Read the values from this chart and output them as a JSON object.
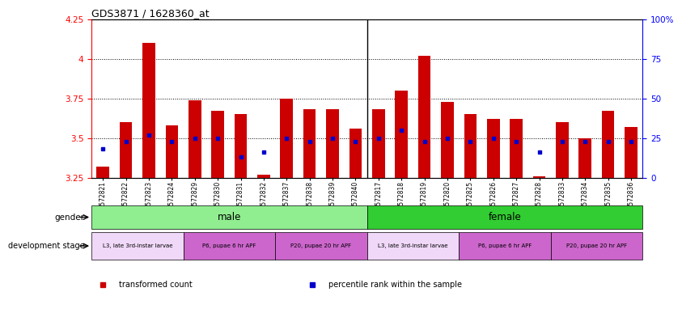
{
  "title": "GDS3871 / 1628360_at",
  "samples": [
    "GSM572821",
    "GSM572822",
    "GSM572823",
    "GSM572824",
    "GSM572829",
    "GSM572830",
    "GSM572831",
    "GSM572832",
    "GSM572837",
    "GSM572838",
    "GSM572839",
    "GSM572840",
    "GSM572817",
    "GSM572818",
    "GSM572819",
    "GSM572820",
    "GSM572825",
    "GSM572826",
    "GSM572827",
    "GSM572828",
    "GSM572833",
    "GSM572834",
    "GSM572835",
    "GSM572836"
  ],
  "bar_values": [
    3.32,
    3.6,
    4.1,
    3.58,
    3.74,
    3.67,
    3.65,
    3.27,
    3.75,
    3.68,
    3.68,
    3.56,
    3.68,
    3.8,
    4.02,
    3.73,
    3.65,
    3.62,
    3.62,
    3.26,
    3.6,
    3.5,
    3.67,
    3.57
  ],
  "blue_values": [
    3.43,
    3.48,
    3.52,
    3.48,
    3.5,
    3.5,
    3.38,
    3.41,
    3.5,
    3.48,
    3.5,
    3.48,
    3.5,
    3.55,
    3.48,
    3.5,
    3.48,
    3.5,
    3.48,
    3.41,
    3.48,
    3.48,
    3.48,
    3.48
  ],
  "bar_color": "#cc0000",
  "blue_color": "#0000cc",
  "ymin": 3.25,
  "ymax": 4.25,
  "yticks_left": [
    3.25,
    3.5,
    3.75,
    4.0,
    4.25
  ],
  "ytick_labels_left": [
    "3.25",
    "3.5",
    "3.75",
    "4",
    "4.25"
  ],
  "yticks_right_pct": [
    0,
    25,
    50,
    75,
    100
  ],
  "ytick_labels_right": [
    "0",
    "25",
    "50",
    "75",
    "100%"
  ],
  "grid_values": [
    3.5,
    3.75,
    4.0
  ],
  "gender_labels": [
    "male",
    "female"
  ],
  "gender_male_color": "#90ee90",
  "gender_female_color": "#32cd32",
  "dev_stage_labels": [
    "L3, late 3rd-instar larvae",
    "P6, pupae 6 hr APF",
    "P20, pupae 20 hr APF",
    "L3, late 3rd-instar larvae",
    "P6, pupae 6 hr APF",
    "P20, pupae 20 hr APF"
  ],
  "dev_stage_ranges": [
    [
      0,
      4
    ],
    [
      4,
      8
    ],
    [
      8,
      12
    ],
    [
      12,
      16
    ],
    [
      16,
      20
    ],
    [
      20,
      24
    ]
  ],
  "dev_stage_colors": [
    "#f0d8f8",
    "#cc66cc",
    "#cc66cc",
    "#f0d8f8",
    "#cc66cc",
    "#cc66cc"
  ],
  "legend_items": [
    {
      "label": "transformed count",
      "color": "#cc0000"
    },
    {
      "label": "percentile rank within the sample",
      "color": "#0000cc"
    }
  ],
  "plot_bg_color": "#ffffff",
  "fig_bg_color": "#ffffff"
}
